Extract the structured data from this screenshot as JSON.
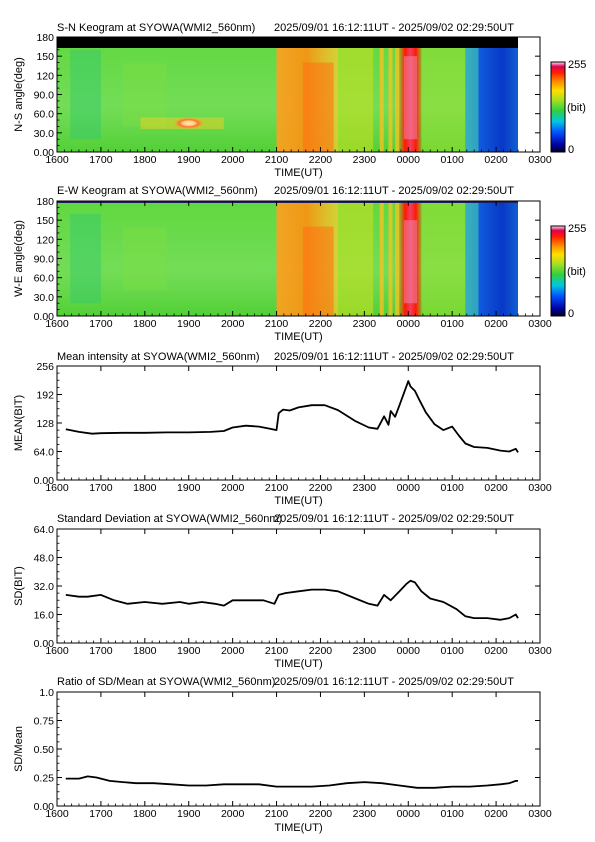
{
  "figure": {
    "station": "SYOWA",
    "period": "2025/09/01 16:12:11UT - 2025/09/02 02:29:50UT"
  },
  "chart_data": [
    {
      "type": "heatmap",
      "title": "S-N Keogram at SYOWA(WMI2_560nm)",
      "time_range": "2025/09/01 16:12:11UT - 2025/09/02 02:29:50UT",
      "xlabel": "TIME(UT)",
      "ylabel": "N-S angle(deg)",
      "xticks": [
        "1600",
        "1700",
        "1800",
        "1900",
        "2000",
        "2100",
        "2200",
        "2300",
        "0000",
        "0100",
        "0200",
        "0300"
      ],
      "yticks": [
        "0.00",
        "30.0",
        "60.0",
        "90.0",
        "120",
        "150",
        "180"
      ],
      "xlim": [
        0,
        11
      ],
      "ylim": [
        0,
        180
      ],
      "colorbar": {
        "labels": [
          "255",
          "(bit)",
          "0"
        ],
        "range": [
          0,
          255
        ]
      },
      "data_end_hour": 10.5,
      "colors": {
        "background": "#60d840",
        "saturated_top_band": "#000000"
      },
      "features": [
        {
          "name": "bright spot",
          "x": 3.0,
          "y": 45,
          "value": 255
        },
        {
          "name": "diffuse band",
          "x_start": 5.0,
          "x_end": 6.4,
          "value": 170
        },
        {
          "name": "bright arc",
          "x_start": 7.8,
          "x_end": 8.3,
          "value": 230
        },
        {
          "name": "dawn twilight decrease",
          "x_start": 9.3,
          "x_end": 10.5,
          "value": 70
        }
      ]
    },
    {
      "type": "heatmap",
      "title": "E-W Keogram at SYOWA(WMI2_560nm)",
      "time_range": "2025/09/01 16:12:11UT - 2025/09/02 02:29:50UT",
      "xlabel": "TIME(UT)",
      "ylabel": "W-E angle(deg)",
      "xticks": [
        "1600",
        "1700",
        "1800",
        "1900",
        "2000",
        "2100",
        "2200",
        "2300",
        "0000",
        "0100",
        "0200",
        "0300"
      ],
      "yticks": [
        "0.00",
        "30.0",
        "60.0",
        "90.0",
        "120",
        "150",
        "180"
      ],
      "xlim": [
        0,
        11
      ],
      "ylim": [
        0,
        180
      ],
      "colorbar": {
        "labels": [
          "255",
          "(bit)",
          "0"
        ],
        "range": [
          0,
          255
        ]
      },
      "data_end_hour": 10.5,
      "colors": {
        "background": "#60d840"
      },
      "features": [
        {
          "name": "diffuse band",
          "x_start": 5.0,
          "x_end": 6.4,
          "value": 170
        },
        {
          "name": "bright arc",
          "x_start": 7.8,
          "x_end": 8.3,
          "value": 235
        },
        {
          "name": "dawn twilight decrease",
          "x_start": 9.3,
          "x_end": 10.5,
          "value": 70
        }
      ]
    },
    {
      "type": "line",
      "title": "Mean intensity at SYOWA(WMI2_560nm)",
      "time_range": "2025/09/01 16:12:11UT - 2025/09/02 02:29:50UT",
      "xlabel": "TIME(UT)",
      "ylabel": "MEAN(BIT)",
      "xticks": [
        "1600",
        "1700",
        "1800",
        "1900",
        "2000",
        "2100",
        "2200",
        "2300",
        "0000",
        "0100",
        "0200",
        "0300"
      ],
      "yticks": [
        "0.00",
        "64.0",
        "128",
        "192",
        "256"
      ],
      "xlim": [
        0,
        11
      ],
      "ylim": [
        0,
        256
      ],
      "grid": false,
      "x_unit": "hours since 1600 UT",
      "x": [
        0.2,
        0.5,
        0.8,
        1.0,
        1.5,
        2.0,
        2.5,
        3.0,
        3.5,
        3.8,
        4.0,
        4.3,
        4.6,
        4.85,
        5.0,
        5.05,
        5.15,
        5.3,
        5.5,
        5.8,
        6.1,
        6.4,
        6.8,
        7.1,
        7.3,
        7.45,
        7.55,
        7.6,
        7.7,
        7.8,
        7.9,
        8.0,
        8.05,
        8.15,
        8.25,
        8.4,
        8.6,
        8.8,
        9.0,
        9.15,
        9.3,
        9.5,
        9.8,
        10.1,
        10.3,
        10.45,
        10.5
      ],
      "y": [
        114,
        108,
        104,
        105,
        106,
        106,
        107,
        107,
        108,
        110,
        118,
        122,
        120,
        115,
        112,
        150,
        158,
        156,
        163,
        168,
        168,
        157,
        132,
        118,
        115,
        143,
        124,
        155,
        142,
        168,
        195,
        222,
        210,
        200,
        180,
        152,
        125,
        112,
        120,
        100,
        82,
        74,
        72,
        66,
        64,
        70,
        62
      ]
    },
    {
      "type": "line",
      "title": "Standard Deviation at SYOWA(WMI2_560nm)",
      "time_range": "2025/09/01 16:12:11UT - 2025/09/02 02:29:50UT",
      "xlabel": "TIME(UT)",
      "ylabel": "SD(BIT)",
      "xticks": [
        "1600",
        "1700",
        "1800",
        "1900",
        "2000",
        "2100",
        "2200",
        "2300",
        "0000",
        "0100",
        "0200",
        "0300"
      ],
      "yticks": [
        "0.00",
        "16.0",
        "32.0",
        "48.0",
        "64.0"
      ],
      "xlim": [
        0,
        11
      ],
      "ylim": [
        0,
        64
      ],
      "grid": false,
      "x_unit": "hours since 1600 UT",
      "x": [
        0.2,
        0.5,
        0.7,
        1.0,
        1.3,
        1.6,
        2.0,
        2.4,
        2.8,
        3.0,
        3.3,
        3.6,
        3.8,
        4.0,
        4.4,
        4.7,
        4.95,
        5.05,
        5.2,
        5.5,
        5.8,
        6.1,
        6.4,
        6.8,
        7.1,
        7.3,
        7.45,
        7.6,
        7.8,
        7.95,
        8.05,
        8.15,
        8.3,
        8.5,
        8.8,
        9.1,
        9.3,
        9.5,
        9.8,
        10.1,
        10.3,
        10.45,
        10.5
      ],
      "y": [
        27,
        26,
        26,
        27,
        24,
        22,
        23,
        22,
        23,
        22,
        23,
        22,
        21,
        24,
        24,
        24,
        22,
        27,
        28,
        29,
        30,
        30,
        29,
        25,
        22,
        21,
        27,
        24,
        29,
        33,
        35,
        34,
        29,
        25,
        23,
        19,
        15,
        14,
        14,
        13,
        14,
        16,
        14
      ]
    },
    {
      "type": "line",
      "title": "Ratio of SD/Mean at SYOWA(WMI2_560nm)",
      "time_range": "2025/09/01 16:12:11UT - 2025/09/02 02:29:50UT",
      "xlabel": "TIME(UT)",
      "ylabel": "SD/Mean",
      "xticks": [
        "1600",
        "1700",
        "1800",
        "1900",
        "2000",
        "2100",
        "2200",
        "2300",
        "0000",
        "0100",
        "0200",
        "0300"
      ],
      "yticks": [
        "0.00",
        "0.25",
        "0.50",
        "0.75",
        "1.0"
      ],
      "xlim": [
        0,
        11
      ],
      "ylim": [
        0,
        1.0
      ],
      "grid": false,
      "x_unit": "hours since 1600 UT",
      "x": [
        0.2,
        0.5,
        0.7,
        0.9,
        1.2,
        1.5,
        1.8,
        2.2,
        2.6,
        3.0,
        3.4,
        3.8,
        4.2,
        4.6,
        5.0,
        5.4,
        5.8,
        6.2,
        6.6,
        7.0,
        7.4,
        7.8,
        8.2,
        8.6,
        9.0,
        9.4,
        9.8,
        10.1,
        10.3,
        10.45,
        10.5
      ],
      "y": [
        0.24,
        0.24,
        0.26,
        0.25,
        0.22,
        0.21,
        0.2,
        0.2,
        0.19,
        0.18,
        0.18,
        0.19,
        0.19,
        0.19,
        0.17,
        0.17,
        0.17,
        0.18,
        0.2,
        0.21,
        0.2,
        0.18,
        0.16,
        0.16,
        0.17,
        0.17,
        0.18,
        0.19,
        0.2,
        0.22,
        0.22
      ]
    }
  ]
}
